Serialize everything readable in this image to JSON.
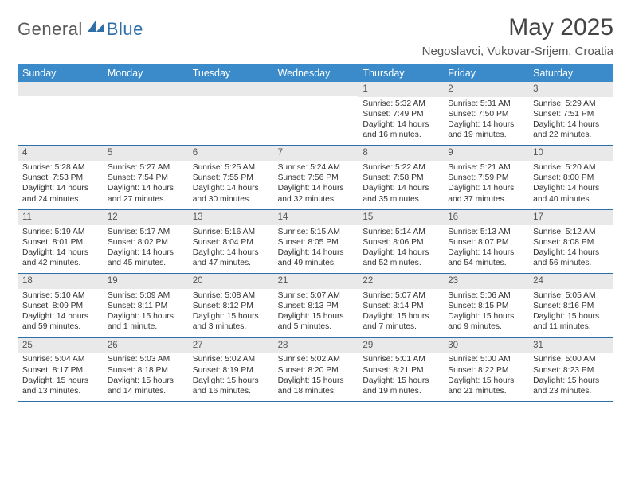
{
  "logo": {
    "general": "General",
    "blue": "Blue"
  },
  "title": "May 2025",
  "location": "Negoslavci, Vukovar-Srijem, Croatia",
  "colors": {
    "header_blue": "#3b8bca",
    "rule_blue": "#2f6fa8",
    "band_gray": "#e9e9e9",
    "text": "#333333",
    "logo_gray": "#5a5a5a",
    "logo_blue": "#2f6fa8"
  },
  "dow": [
    "Sunday",
    "Monday",
    "Tuesday",
    "Wednesday",
    "Thursday",
    "Friday",
    "Saturday"
  ],
  "weeks": [
    [
      {
        "n": "",
        "sr": "",
        "ss": "",
        "dl": ""
      },
      {
        "n": "",
        "sr": "",
        "ss": "",
        "dl": ""
      },
      {
        "n": "",
        "sr": "",
        "ss": "",
        "dl": ""
      },
      {
        "n": "",
        "sr": "",
        "ss": "",
        "dl": ""
      },
      {
        "n": "1",
        "sr": "Sunrise: 5:32 AM",
        "ss": "Sunset: 7:49 PM",
        "dl": "Daylight: 14 hours and 16 minutes."
      },
      {
        "n": "2",
        "sr": "Sunrise: 5:31 AM",
        "ss": "Sunset: 7:50 PM",
        "dl": "Daylight: 14 hours and 19 minutes."
      },
      {
        "n": "3",
        "sr": "Sunrise: 5:29 AM",
        "ss": "Sunset: 7:51 PM",
        "dl": "Daylight: 14 hours and 22 minutes."
      }
    ],
    [
      {
        "n": "4",
        "sr": "Sunrise: 5:28 AM",
        "ss": "Sunset: 7:53 PM",
        "dl": "Daylight: 14 hours and 24 minutes."
      },
      {
        "n": "5",
        "sr": "Sunrise: 5:27 AM",
        "ss": "Sunset: 7:54 PM",
        "dl": "Daylight: 14 hours and 27 minutes."
      },
      {
        "n": "6",
        "sr": "Sunrise: 5:25 AM",
        "ss": "Sunset: 7:55 PM",
        "dl": "Daylight: 14 hours and 30 minutes."
      },
      {
        "n": "7",
        "sr": "Sunrise: 5:24 AM",
        "ss": "Sunset: 7:56 PM",
        "dl": "Daylight: 14 hours and 32 minutes."
      },
      {
        "n": "8",
        "sr": "Sunrise: 5:22 AM",
        "ss": "Sunset: 7:58 PM",
        "dl": "Daylight: 14 hours and 35 minutes."
      },
      {
        "n": "9",
        "sr": "Sunrise: 5:21 AM",
        "ss": "Sunset: 7:59 PM",
        "dl": "Daylight: 14 hours and 37 minutes."
      },
      {
        "n": "10",
        "sr": "Sunrise: 5:20 AM",
        "ss": "Sunset: 8:00 PM",
        "dl": "Daylight: 14 hours and 40 minutes."
      }
    ],
    [
      {
        "n": "11",
        "sr": "Sunrise: 5:19 AM",
        "ss": "Sunset: 8:01 PM",
        "dl": "Daylight: 14 hours and 42 minutes."
      },
      {
        "n": "12",
        "sr": "Sunrise: 5:17 AM",
        "ss": "Sunset: 8:02 PM",
        "dl": "Daylight: 14 hours and 45 minutes."
      },
      {
        "n": "13",
        "sr": "Sunrise: 5:16 AM",
        "ss": "Sunset: 8:04 PM",
        "dl": "Daylight: 14 hours and 47 minutes."
      },
      {
        "n": "14",
        "sr": "Sunrise: 5:15 AM",
        "ss": "Sunset: 8:05 PM",
        "dl": "Daylight: 14 hours and 49 minutes."
      },
      {
        "n": "15",
        "sr": "Sunrise: 5:14 AM",
        "ss": "Sunset: 8:06 PM",
        "dl": "Daylight: 14 hours and 52 minutes."
      },
      {
        "n": "16",
        "sr": "Sunrise: 5:13 AM",
        "ss": "Sunset: 8:07 PM",
        "dl": "Daylight: 14 hours and 54 minutes."
      },
      {
        "n": "17",
        "sr": "Sunrise: 5:12 AM",
        "ss": "Sunset: 8:08 PM",
        "dl": "Daylight: 14 hours and 56 minutes."
      }
    ],
    [
      {
        "n": "18",
        "sr": "Sunrise: 5:10 AM",
        "ss": "Sunset: 8:09 PM",
        "dl": "Daylight: 14 hours and 59 minutes."
      },
      {
        "n": "19",
        "sr": "Sunrise: 5:09 AM",
        "ss": "Sunset: 8:11 PM",
        "dl": "Daylight: 15 hours and 1 minute."
      },
      {
        "n": "20",
        "sr": "Sunrise: 5:08 AM",
        "ss": "Sunset: 8:12 PM",
        "dl": "Daylight: 15 hours and 3 minutes."
      },
      {
        "n": "21",
        "sr": "Sunrise: 5:07 AM",
        "ss": "Sunset: 8:13 PM",
        "dl": "Daylight: 15 hours and 5 minutes."
      },
      {
        "n": "22",
        "sr": "Sunrise: 5:07 AM",
        "ss": "Sunset: 8:14 PM",
        "dl": "Daylight: 15 hours and 7 minutes."
      },
      {
        "n": "23",
        "sr": "Sunrise: 5:06 AM",
        "ss": "Sunset: 8:15 PM",
        "dl": "Daylight: 15 hours and 9 minutes."
      },
      {
        "n": "24",
        "sr": "Sunrise: 5:05 AM",
        "ss": "Sunset: 8:16 PM",
        "dl": "Daylight: 15 hours and 11 minutes."
      }
    ],
    [
      {
        "n": "25",
        "sr": "Sunrise: 5:04 AM",
        "ss": "Sunset: 8:17 PM",
        "dl": "Daylight: 15 hours and 13 minutes."
      },
      {
        "n": "26",
        "sr": "Sunrise: 5:03 AM",
        "ss": "Sunset: 8:18 PM",
        "dl": "Daylight: 15 hours and 14 minutes."
      },
      {
        "n": "27",
        "sr": "Sunrise: 5:02 AM",
        "ss": "Sunset: 8:19 PM",
        "dl": "Daylight: 15 hours and 16 minutes."
      },
      {
        "n": "28",
        "sr": "Sunrise: 5:02 AM",
        "ss": "Sunset: 8:20 PM",
        "dl": "Daylight: 15 hours and 18 minutes."
      },
      {
        "n": "29",
        "sr": "Sunrise: 5:01 AM",
        "ss": "Sunset: 8:21 PM",
        "dl": "Daylight: 15 hours and 19 minutes."
      },
      {
        "n": "30",
        "sr": "Sunrise: 5:00 AM",
        "ss": "Sunset: 8:22 PM",
        "dl": "Daylight: 15 hours and 21 minutes."
      },
      {
        "n": "31",
        "sr": "Sunrise: 5:00 AM",
        "ss": "Sunset: 8:23 PM",
        "dl": "Daylight: 15 hours and 23 minutes."
      }
    ]
  ]
}
